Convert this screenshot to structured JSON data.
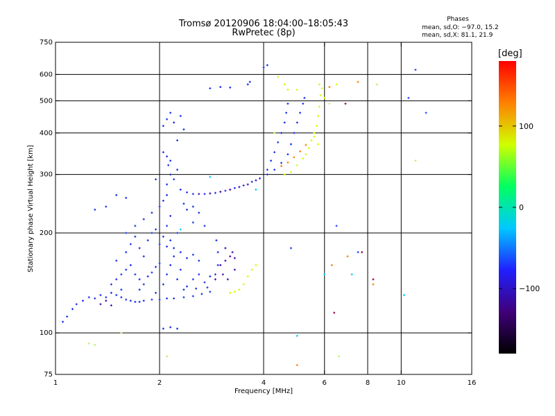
{
  "chart_data": {
    "type": "scatter",
    "title": "Tromsø 20120906 18:04:00–18:05:43",
    "subtitle": "RwPretec (8p)",
    "xlabel": "Frequency [MHz]",
    "ylabel": "Stationary phase Virtual Height [km]",
    "x_scale": "log",
    "y_scale": "log",
    "xlim": [
      1,
      16
    ],
    "ylim": [
      75,
      750
    ],
    "x_ticks": [
      1,
      2,
      4,
      6,
      8,
      10,
      16
    ],
    "x_tick_labels": [
      "1",
      "2",
      "4",
      "6",
      "8",
      "10",
      "16"
    ],
    "y_ticks": [
      75,
      100,
      200,
      300,
      400,
      500,
      600,
      750
    ],
    "y_tick_labels": [
      "75",
      "100",
      "200",
      "300",
      "400",
      "500",
      "600",
      "750"
    ],
    "grid_x": [
      2,
      4,
      6,
      8,
      10
    ],
    "grid_y": [
      100,
      200,
      300,
      400,
      500,
      600
    ],
    "grid": true,
    "stats": {
      "heading": "Phases",
      "line_o": "mean, sd,O: −97.0, 15.2",
      "line_x": "mean, sd,X:  81.1, 21.9"
    },
    "colorbar": {
      "label": "[deg]",
      "range": [
        -180,
        180
      ],
      "ticks": [
        100,
        0,
        -100
      ],
      "tick_labels": [
        "100",
        "0",
        "−100"
      ],
      "colors": [
        "#000000",
        "#40007a",
        "#2020ff",
        "#00c8ff",
        "#00ff60",
        "#d0ff00",
        "#ff8000",
        "#ff0000"
      ]
    },
    "series": [
      {
        "color": "#1a2ee8",
        "points": [
          [
            1.05,
            108
          ],
          [
            1.08,
            112
          ],
          [
            1.12,
            118
          ],
          [
            1.15,
            122
          ],
          [
            1.2,
            125
          ],
          [
            1.25,
            128
          ],
          [
            1.3,
            127
          ],
          [
            1.35,
            130
          ],
          [
            1.4,
            128
          ],
          [
            1.45,
            132
          ],
          [
            1.5,
            130
          ],
          [
            1.55,
            128
          ],
          [
            1.6,
            126
          ],
          [
            1.65,
            125
          ],
          [
            1.7,
            124
          ],
          [
            1.75,
            124
          ],
          [
            1.8,
            125
          ],
          [
            1.9,
            126
          ],
          [
            2.0,
            126
          ],
          [
            2.1,
            127
          ],
          [
            2.2,
            127
          ],
          [
            2.35,
            128
          ],
          [
            2.5,
            129
          ],
          [
            2.65,
            131
          ],
          [
            2.8,
            133
          ],
          [
            1.45,
            140
          ],
          [
            1.5,
            145
          ],
          [
            1.55,
            150
          ],
          [
            1.6,
            155
          ],
          [
            1.65,
            160
          ],
          [
            1.7,
            150
          ],
          [
            1.75,
            145
          ],
          [
            1.8,
            140
          ],
          [
            1.85,
            148
          ],
          [
            1.9,
            152
          ],
          [
            1.95,
            158
          ],
          [
            2.0,
            162
          ],
          [
            2.05,
            140
          ],
          [
            2.1,
            150
          ],
          [
            2.15,
            160
          ],
          [
            2.2,
            170
          ],
          [
            2.25,
            145
          ],
          [
            2.3,
            155
          ],
          [
            2.4,
            138
          ],
          [
            2.5,
            145
          ],
          [
            2.6,
            150
          ],
          [
            2.7,
            142
          ],
          [
            2.8,
            148
          ],
          [
            1.5,
            165
          ],
          [
            1.6,
            175
          ],
          [
            1.65,
            185
          ],
          [
            1.7,
            195
          ],
          [
            1.75,
            180
          ],
          [
            1.8,
            170
          ],
          [
            1.85,
            190
          ],
          [
            1.9,
            200
          ],
          [
            1.95,
            205
          ],
          [
            2.0,
            185
          ],
          [
            2.05,
            195
          ],
          [
            2.1,
            210
          ],
          [
            2.15,
            190
          ],
          [
            2.2,
            180
          ],
          [
            2.3,
            175
          ],
          [
            2.4,
            168
          ],
          [
            2.5,
            172
          ],
          [
            2.6,
            165
          ],
          [
            1.6,
            200
          ],
          [
            1.7,
            210
          ],
          [
            1.8,
            220
          ],
          [
            1.9,
            230
          ],
          [
            2.0,
            240
          ],
          [
            2.05,
            250
          ],
          [
            2.1,
            260
          ],
          [
            2.1,
            280
          ],
          [
            2.15,
            300
          ],
          [
            2.12,
            320
          ],
          [
            2.1,
            340
          ],
          [
            2.05,
            420
          ],
          [
            2.1,
            440
          ],
          [
            2.15,
            460
          ],
          [
            2.2,
            430
          ],
          [
            2.3,
            450
          ],
          [
            2.35,
            410
          ],
          [
            2.25,
            380
          ],
          [
            2.2,
            290
          ],
          [
            2.3,
            270
          ],
          [
            2.4,
            265
          ],
          [
            2.5,
            262
          ],
          [
            2.7,
            262
          ],
          [
            2.9,
            264
          ],
          [
            3.1,
            268
          ],
          [
            3.3,
            273
          ],
          [
            3.5,
            278
          ],
          [
            3.7,
            285
          ],
          [
            3.9,
            292
          ],
          [
            4.1,
            300
          ],
          [
            4.3,
            310
          ],
          [
            4.5,
            325
          ],
          [
            4.7,
            345
          ],
          [
            4.8,
            370
          ],
          [
            4.9,
            400
          ],
          [
            5.0,
            430
          ],
          [
            5.1,
            460
          ],
          [
            5.2,
            490
          ],
          [
            5.25,
            510
          ],
          [
            4.1,
            310
          ],
          [
            4.2,
            330
          ],
          [
            4.3,
            350
          ],
          [
            4.4,
            375
          ],
          [
            4.5,
            400
          ],
          [
            4.6,
            430
          ],
          [
            4.65,
            460
          ],
          [
            4.7,
            490
          ],
          [
            3.6,
            560
          ],
          [
            3.65,
            570
          ],
          [
            4.0,
            630
          ],
          [
            4.1,
            640
          ],
          [
            2.8,
            545
          ],
          [
            3.0,
            550
          ],
          [
            3.2,
            548
          ],
          [
            2.05,
            103
          ],
          [
            2.15,
            104
          ],
          [
            2.25,
            103
          ],
          [
            1.5,
            260
          ],
          [
            1.6,
            255
          ],
          [
            1.3,
            235
          ],
          [
            1.4,
            240
          ],
          [
            2.1,
            182
          ],
          [
            2.25,
            200
          ],
          [
            2.15,
            225
          ],
          [
            2.4,
            235
          ],
          [
            2.5,
            215
          ],
          [
            1.55,
            135
          ],
          [
            1.75,
            135
          ],
          [
            1.95,
            132
          ],
          [
            2.35,
            135
          ],
          [
            2.55,
            136
          ],
          [
            2.75,
            137
          ],
          [
            2.9,
            150
          ],
          [
            2.95,
            160
          ],
          [
            2.95,
            175
          ],
          [
            2.92,
            190
          ],
          [
            2.05,
            350
          ],
          [
            2.15,
            330
          ],
          [
            2.25,
            310
          ],
          [
            1.95,
            290
          ],
          [
            2.35,
            245
          ],
          [
            2.5,
            240
          ],
          [
            2.6,
            230
          ],
          [
            2.7,
            210
          ]
        ]
      },
      {
        "color": "#4a0aa8",
        "points": [
          [
            2.6,
            262
          ],
          [
            2.8,
            263
          ],
          [
            3.0,
            266
          ],
          [
            3.2,
            270
          ],
          [
            3.4,
            275
          ],
          [
            3.6,
            280
          ],
          [
            3.8,
            288
          ],
          [
            3.0,
            160
          ],
          [
            3.1,
            165
          ],
          [
            3.2,
            170
          ],
          [
            3.3,
            168
          ],
          [
            3.25,
            175
          ],
          [
            3.1,
            180
          ],
          [
            3.3,
            155
          ],
          [
            1.35,
            122
          ],
          [
            1.4,
            125
          ],
          [
            1.45,
            121
          ],
          [
            2.9,
            145
          ],
          [
            3.05,
            150
          ],
          [
            3.15,
            145
          ]
        ]
      },
      {
        "color": "#ccff00",
        "points": [
          [
            4.6,
            300
          ],
          [
            4.8,
            305
          ],
          [
            5.0,
            320
          ],
          [
            5.2,
            335
          ],
          [
            5.4,
            360
          ],
          [
            5.6,
            390
          ],
          [
            5.7,
            420
          ],
          [
            5.75,
            450
          ],
          [
            5.8,
            480
          ],
          [
            5.85,
            520
          ],
          [
            5.6,
            400
          ],
          [
            5.5,
            380
          ],
          [
            5.3,
            345
          ],
          [
            5.75,
            370
          ],
          [
            3.2,
            132
          ],
          [
            3.3,
            133
          ],
          [
            3.4,
            135
          ],
          [
            3.5,
            140
          ],
          [
            3.6,
            148
          ],
          [
            3.7,
            155
          ],
          [
            3.8,
            160
          ],
          [
            4.4,
            590
          ],
          [
            4.6,
            560
          ],
          [
            4.7,
            540
          ],
          [
            5.8,
            560
          ],
          [
            5.9,
            545
          ],
          [
            6.0,
            510
          ],
          [
            5.0,
            540
          ],
          [
            6.5,
            560
          ]
        ]
      },
      {
        "color": "#ff8000",
        "points": [
          [
            4.5,
            318
          ],
          [
            4.7,
            326
          ],
          [
            4.9,
            338
          ],
          [
            5.1,
            352
          ],
          [
            5.3,
            368
          ],
          [
            6.2,
            550
          ],
          [
            7.5,
            570
          ],
          [
            5.0,
            80
          ],
          [
            6.3,
            160
          ],
          [
            7.0,
            170
          ],
          [
            8.3,
            140
          ]
        ]
      },
      {
        "color": "#00c8ff",
        "points": [
          [
            5.0,
            98
          ],
          [
            10.2,
            130
          ],
          [
            3.8,
            270
          ],
          [
            2.8,
            295
          ],
          [
            2.3,
            205
          ],
          [
            7.2,
            150
          ],
          [
            6.0,
            150
          ]
        ]
      },
      {
        "color": "#2040ff",
        "points": [
          [
            10.5,
            510
          ],
          [
            11.0,
            620
          ],
          [
            11.8,
            460
          ],
          [
            4.8,
            180
          ],
          [
            6.5,
            210
          ],
          [
            7.5,
            175
          ]
        ]
      },
      {
        "color": "#9a0050",
        "points": [
          [
            6.4,
            115
          ],
          [
            6.9,
            490
          ],
          [
            7.7,
            175
          ],
          [
            8.3,
            145
          ]
        ]
      },
      {
        "color": "#bff070",
        "points": [
          [
            1.25,
            93
          ],
          [
            1.3,
            92
          ],
          [
            1.55,
            100
          ],
          [
            2.1,
            85
          ],
          [
            6.6,
            85
          ],
          [
            4.3,
            400
          ],
          [
            6.2,
            490
          ],
          [
            8.5,
            560
          ],
          [
            11.0,
            330
          ]
        ]
      }
    ]
  }
}
